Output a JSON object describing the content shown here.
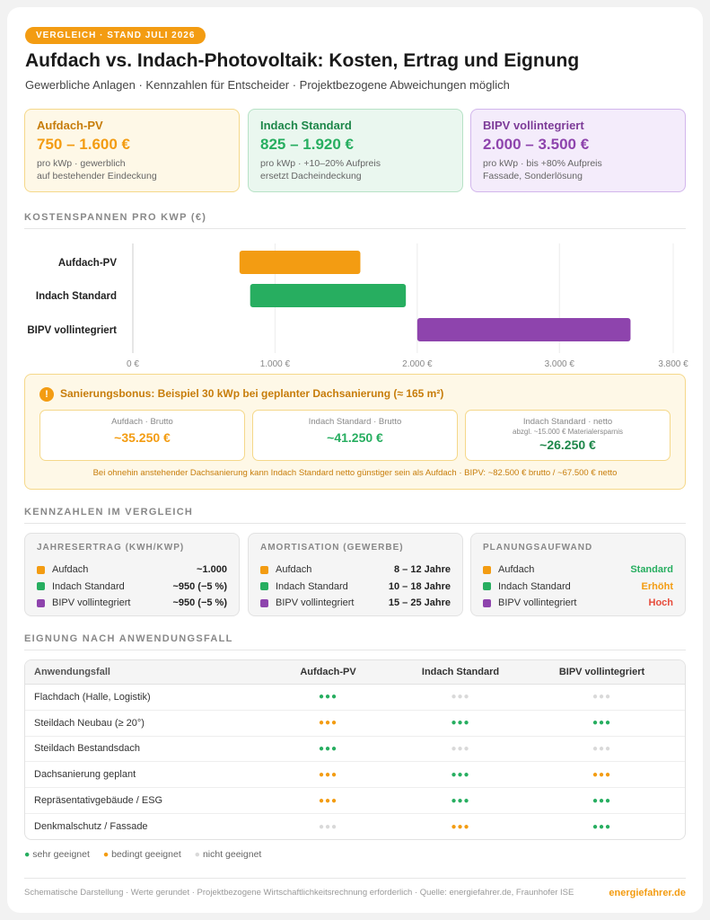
{
  "header": {
    "badge": "VERGLEICH · STAND JULI 2026",
    "title": "Aufdach vs. Indach-Photovoltaik: Kosten, Ertrag und Eignung",
    "subtitle": "Gewerbliche Anlagen · Kennzahlen für Entscheider · Projektbezogene Abweichungen möglich"
  },
  "cards": [
    {
      "title": "Aufdach-PV",
      "price": "750 – 1.600 €",
      "line1": "pro kWp · gewerblich",
      "line2": "auf bestehender Eindeckung"
    },
    {
      "title": "Indach Standard",
      "price": "825 – 1.920 €",
      "line1": "pro kWp · +10–20% Aufpreis",
      "line2": "ersetzt Dacheindeckung"
    },
    {
      "title": "BIPV vollintegriert",
      "price": "2.000 – 3.500 €",
      "line1": "pro kWp · bis +80% Aufpreis",
      "line2": "Fassade, Sonderlösung"
    }
  ],
  "sections": {
    "costs": "KOSTENSPANNEN PRO KWP (€)",
    "kpis": "KENNZAHLEN IM VERGLEICH",
    "suitability": "EIGNUNG NACH ANWENDUNGSFALL"
  },
  "colors": {
    "aufdach": "#f39c12",
    "indach": "#27ae60",
    "bipv": "#8e44ad",
    "grey": "#d9d9d9",
    "red": "#e74c3c"
  },
  "chart_data": {
    "type": "bar",
    "orientation": "horizontal-range",
    "categories": [
      "Aufdach-PV",
      "Indach Standard",
      "BIPV vollintegriert"
    ],
    "ranges": [
      [
        750,
        1600
      ],
      [
        825,
        1920
      ],
      [
        2000,
        3500
      ]
    ],
    "xlim": [
      0,
      3800
    ],
    "xticks": [
      0,
      1000,
      2000,
      3000,
      3800
    ],
    "xtick_labels": [
      "0 €",
      "1.000 €",
      "2.000 €",
      "3.000 €",
      "3.800 €"
    ],
    "grid": true
  },
  "bonus": {
    "icon": "!",
    "title": "Sanierungsbonus: Beispiel 30 kWp bei geplanter Dachsanierung (≈ 165 m²)",
    "boxes": [
      {
        "label": "Aufdach · Brutto",
        "sub": "",
        "value": "~35.250 €"
      },
      {
        "label": "Indach Standard · Brutto",
        "sub": "",
        "value": "~41.250 €"
      },
      {
        "label": "Indach Standard · netto",
        "sub": "abzgl. ~15.000 € Materialersparnis",
        "value": "~26.250 €"
      }
    ],
    "note": "Bei ohnehin anstehender Dachsanierung kann Indach Standard netto günstiger sein als Aufdach · BIPV: ~82.500 € brutto / ~67.500 € netto"
  },
  "kpis": [
    {
      "title": "JAHRESERTRAG (KWH/KWP)",
      "rows": [
        {
          "label": "Aufdach",
          "value": "~1.000"
        },
        {
          "label": "Indach Standard",
          "value": "~950 (−5 %)"
        },
        {
          "label": "BIPV vollintegriert",
          "value": "~950 (−5 %)"
        }
      ]
    },
    {
      "title": "AMORTISATION (GEWERBE)",
      "rows": [
        {
          "label": "Aufdach",
          "value": "8 – 12 Jahre"
        },
        {
          "label": "Indach Standard",
          "value": "10 – 18 Jahre"
        },
        {
          "label": "BIPV vollintegriert",
          "value": "15 – 25 Jahre"
        }
      ]
    },
    {
      "title": "PLANUNGSAUFWAND",
      "rows": [
        {
          "label": "Aufdach",
          "value": "Standard",
          "color": "#27ae60"
        },
        {
          "label": "Indach Standard",
          "value": "Erhöht",
          "color": "#f39c12"
        },
        {
          "label": "BIPV vollintegriert",
          "value": "Hoch",
          "color": "#e74c3c"
        }
      ]
    }
  ],
  "table": {
    "headers": [
      "Anwendungsfall",
      "Aufdach-PV",
      "Indach Standard",
      "BIPV vollintegriert"
    ],
    "rows": [
      {
        "label": "Flachdach (Halle, Logistik)",
        "ratings": [
          "good",
          "none",
          "none"
        ]
      },
      {
        "label": "Steildach Neubau (≥ 20°)",
        "ratings": [
          "ok",
          "good",
          "good"
        ]
      },
      {
        "label": "Steildach Bestandsdach",
        "ratings": [
          "good",
          "none",
          "none"
        ]
      },
      {
        "label": "Dachsanierung geplant",
        "ratings": [
          "ok",
          "good",
          "ok"
        ]
      },
      {
        "label": "Repräsentativgebäude / ESG",
        "ratings": [
          "ok",
          "good",
          "good"
        ]
      },
      {
        "label": "Denkmalschutz / Fassade",
        "ratings": [
          "none",
          "ok",
          "good"
        ]
      }
    ],
    "dots": "●●●"
  },
  "legend": [
    {
      "symbol": "●",
      "label": "sehr geeignet",
      "color": "#27ae60"
    },
    {
      "symbol": "●",
      "label": "bedingt geeignet",
      "color": "#f39c12"
    },
    {
      "symbol": "●",
      "label": "nicht geeignet",
      "color": "#d9d9d9"
    }
  ],
  "footer": {
    "text": "Schematische Darstellung · Werte gerundet · Projektbezogene Wirtschaftlichkeitsrechnung erforderlich · Quelle: energiefahrer.de, Fraunhofer ISE",
    "brand": "energiefahrer.de"
  }
}
